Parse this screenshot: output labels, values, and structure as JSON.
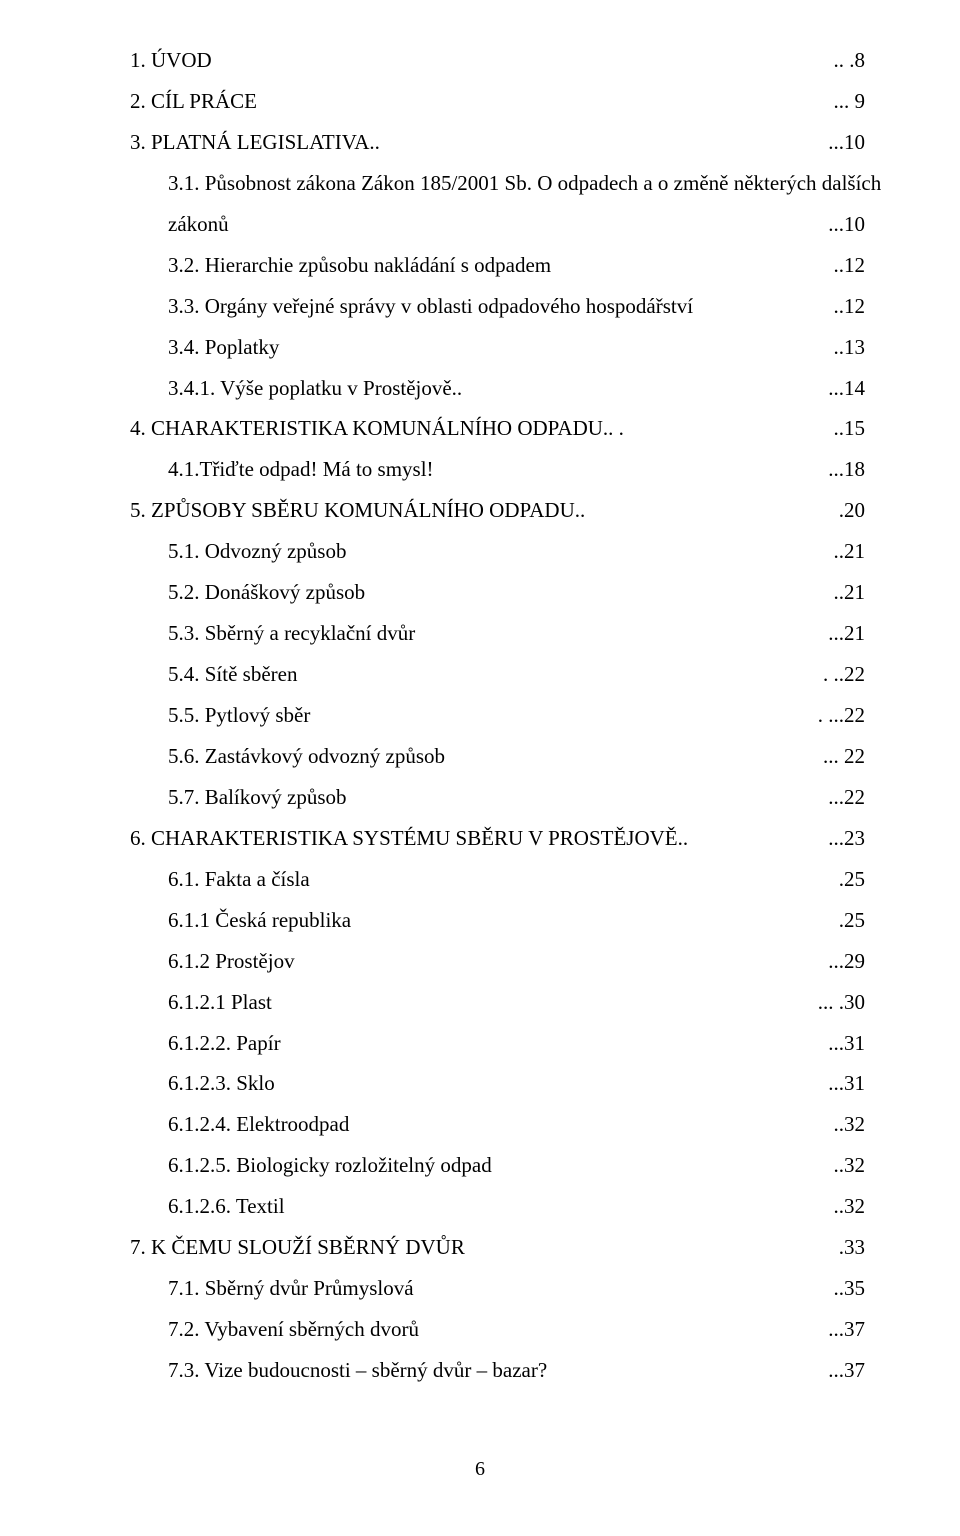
{
  "toc": [
    {
      "indent": 0,
      "label": "1.  ÚVOD",
      "page": ".. .8"
    },
    {
      "indent": 0,
      "label": "2.  CÍL PRÁCE",
      "page": "... 9"
    },
    {
      "indent": 0,
      "label": "3.  PLATNÁ LEGISLATIVA..",
      "page": "...10"
    },
    {
      "indent": 1,
      "label": "3.1. Působnost zákona Zákon 185/2001 Sb. O odpadech a o změně některých dalších",
      "page": "",
      "no_leader": true
    },
    {
      "indent": 1,
      "label": "zákonů",
      "page": "...10"
    },
    {
      "indent": 1,
      "label": "3.2. Hierarchie způsobu nakládání s odpadem",
      "page": "..12"
    },
    {
      "indent": 1,
      "label": "3.3. Orgány veřejné správy v oblasti odpadového hospodářství",
      "page": "..12"
    },
    {
      "indent": 1,
      "label": "3.4. Poplatky",
      "page": "..13"
    },
    {
      "indent": 1,
      "label": "3.4.1. Výše poplatku v Prostějově..",
      "page": "...14"
    },
    {
      "indent": 0,
      "label": "4.  CHARAKTERISTIKA KOMUNÁLNÍHO ODPADU.. .",
      "page": "..15"
    },
    {
      "indent": 1,
      "label": "4.1.Třiďte odpad! Má to smysl!",
      "page": "...18",
      "leader_style": "dots"
    },
    {
      "indent": 0,
      "label": "5.  ZPŮSOBY SBĚRU KOMUNÁLNÍHO ODPADU..",
      "page": ".20"
    },
    {
      "indent": 1,
      "label": "5.1. Odvozný způsob",
      "page": "..21"
    },
    {
      "indent": 1,
      "label": "5.2. Donáškový způsob",
      "page": "..21"
    },
    {
      "indent": 1,
      "label": "5.3. Sběrný a recyklační dvůr",
      "page": "...21"
    },
    {
      "indent": 1,
      "label": "5.4. Sítě sběren",
      "page": ". ..22"
    },
    {
      "indent": 1,
      "label": "5.5. Pytlový sběr",
      "page": ". ...22"
    },
    {
      "indent": 1,
      "label": "5.6. Zastávkový odvozný způsob",
      "page": "... 22"
    },
    {
      "indent": 1,
      "label": "5.7. Balíkový způsob",
      "page": "...22"
    },
    {
      "indent": 0,
      "label": "6.  CHARAKTERISTIKA SYSTÉMU SBĚRU V PROSTĚJOVĚ..",
      "page": "...23"
    },
    {
      "indent": 1,
      "label": "6.1. Fakta a čísla",
      "page": ".25"
    },
    {
      "indent": 1,
      "label": "6.1.1 Česká republika",
      "page": ".25"
    },
    {
      "indent": 1,
      "label": "6.1.2 Prostějov",
      "page": "...29"
    },
    {
      "indent": 1,
      "label": "6.1.2.1 Plast",
      "page": "... .30"
    },
    {
      "indent": 1,
      "label": "6.1.2.2. Papír",
      "page": "...31"
    },
    {
      "indent": 1,
      "label": "6.1.2.3. Sklo",
      "page": "...31"
    },
    {
      "indent": 1,
      "label": "6.1.2.4. Elektroodpad",
      "page": "..32"
    },
    {
      "indent": 1,
      "label": "6.1.2.5. Biologicky rozložitelný odpad",
      "page": "..32"
    },
    {
      "indent": 1,
      "label": "6.1.2.6. Textil",
      "page": "..32"
    },
    {
      "indent": 0,
      "label": "7.  K ČEMU SLOUŽÍ SBĚRNÝ DVŮR",
      "page": ".33"
    },
    {
      "indent": 1,
      "label": "7.1. Sběrný dvůr Průmyslová",
      "page": "..35"
    },
    {
      "indent": 1,
      "label": "7.2. Vybavení sběrných dvorů",
      "page": "...37"
    },
    {
      "indent": 1,
      "label": "7.3. Vize budoucnosti – sběrný dvůr – bazar?",
      "page": "...37",
      "leader_style": "dots"
    }
  ],
  "page_number": "6"
}
